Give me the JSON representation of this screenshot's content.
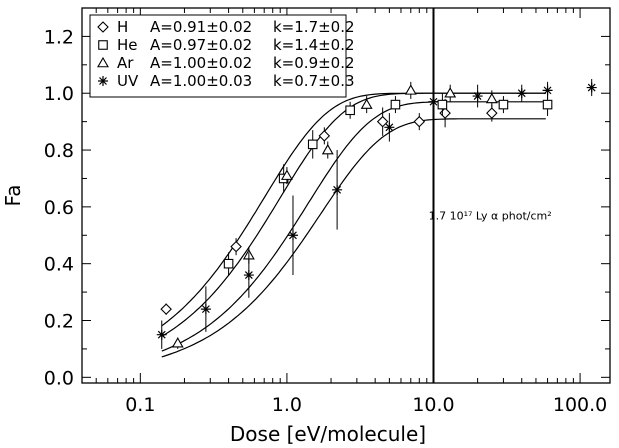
{
  "chart_data": {
    "type": "scatter",
    "xscale": "log",
    "xlabel": "Dose [eV/molecule]",
    "ylabel": "Fa",
    "xlim": [
      0.04,
      160
    ],
    "ylim": [
      -0.02,
      1.3
    ],
    "xticks": [
      {
        "value": 0.1,
        "label": "0.1"
      },
      {
        "value": 1.0,
        "label": "1.0"
      },
      {
        "value": 10.0,
        "label": "10.0"
      },
      {
        "value": 100.0,
        "label": "100.0"
      }
    ],
    "yticks": [
      {
        "value": 0.0,
        "label": "0.0"
      },
      {
        "value": 0.2,
        "label": "0.2"
      },
      {
        "value": 0.4,
        "label": "0.4"
      },
      {
        "value": 0.6,
        "label": "0.6"
      },
      {
        "value": 0.8,
        "label": "0.8"
      },
      {
        "value": 1.0,
        "label": "1.0"
      },
      {
        "value": 1.2,
        "label": "1.2"
      }
    ],
    "legend_position": "top-left",
    "series": [
      {
        "name": "H",
        "marker": "diamond",
        "fit_A": "A=0.91±0.02",
        "fit_k": "k=1.7±0.2",
        "A": 0.91,
        "k": 1.7,
        "points": [
          [
            0.15,
            0.24,
            0.02
          ],
          [
            0.45,
            0.46,
            0.03
          ],
          [
            1.8,
            0.85,
            0.03
          ],
          [
            4.5,
            0.9,
            0.05
          ],
          [
            8.0,
            0.9,
            0.03
          ],
          [
            12.0,
            0.93,
            0.05
          ],
          [
            25.0,
            0.93,
            0.03
          ]
        ]
      },
      {
        "name": "He",
        "marker": "square",
        "fit_A": "A=0.97±0.02",
        "fit_k": "k=1.4±0.2",
        "A": 0.97,
        "k": 1.4,
        "points": [
          [
            0.4,
            0.4,
            0.04
          ],
          [
            0.95,
            0.7,
            0.05
          ],
          [
            1.5,
            0.82,
            0.05
          ],
          [
            2.7,
            0.94,
            0.03
          ],
          [
            5.5,
            0.96,
            0.03
          ],
          [
            11.5,
            0.96,
            0.04
          ],
          [
            30.0,
            0.96,
            0.03
          ],
          [
            60.0,
            0.96,
            0.04
          ]
        ]
      },
      {
        "name": "Ar",
        "marker": "triangle",
        "fit_A": "A=1.00±0.02",
        "fit_k": "k=0.9±0.2",
        "A": 1.0,
        "k": 0.9,
        "points": [
          [
            0.18,
            0.12,
            0.02
          ],
          [
            0.55,
            0.43,
            0.03
          ],
          [
            1.0,
            0.71,
            0.03
          ],
          [
            1.9,
            0.8,
            0.03
          ],
          [
            3.5,
            0.96,
            0.03
          ],
          [
            7.0,
            1.01,
            0.03
          ],
          [
            13.0,
            1.0,
            0.03
          ],
          [
            25.0,
            0.98,
            0.03
          ]
        ]
      },
      {
        "name": "UV",
        "marker": "asterisk",
        "fit_A": "A=1.00±0.03",
        "fit_k": "k=0.7±0.3",
        "A": 1.0,
        "k": 0.7,
        "points": [
          [
            0.14,
            0.15,
            0.05
          ],
          [
            0.28,
            0.24,
            0.08
          ],
          [
            0.55,
            0.36,
            0.08
          ],
          [
            1.1,
            0.5,
            0.14
          ],
          [
            2.2,
            0.66,
            0.14
          ],
          [
            5.0,
            0.88,
            0.05
          ],
          [
            10.0,
            0.97,
            0.06
          ],
          [
            20.0,
            0.99,
            0.04
          ],
          [
            40.0,
            1.0,
            0.03
          ],
          [
            60.0,
            1.01,
            0.03
          ],
          [
            120.0,
            1.02,
            0.03
          ]
        ]
      }
    ],
    "vline": {
      "x": 10.0
    },
    "annotation": {
      "text": "1.7 10¹⁷ Ly α phot/cm²",
      "x": 10.5,
      "y": 0.57
    }
  }
}
